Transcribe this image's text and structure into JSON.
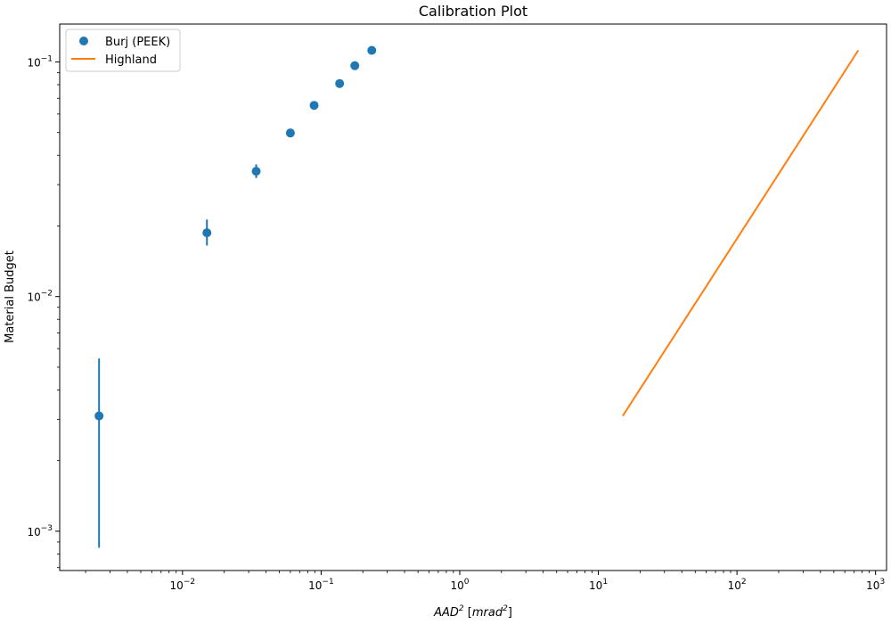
{
  "chart_data": {
    "type": "scatter",
    "title": "Calibration Plot",
    "xlabel": {
      "base": "AAD",
      "base_sup": "2",
      "unit_open": " [",
      "unit": "mrad",
      "unit_sup": "2",
      "unit_close": "]"
    },
    "ylabel": "Material Budget",
    "xscale": "log",
    "yscale": "log",
    "xlim": [
      0.0013,
      1200
    ],
    "ylim": [
      0.00068,
      0.145
    ],
    "x_ticks": [
      {
        "value": 0.01,
        "base": "10",
        "exp": "−2"
      },
      {
        "value": 0.1,
        "base": "10",
        "exp": "−1"
      },
      {
        "value": 1,
        "base": "10",
        "exp": "0"
      },
      {
        "value": 10,
        "base": "10",
        "exp": "1"
      },
      {
        "value": 100,
        "base": "10",
        "exp": "2"
      },
      {
        "value": 1000,
        "base": "10",
        "exp": "3"
      }
    ],
    "y_ticks": [
      {
        "value": 0.001,
        "base": "10",
        "exp": "−3"
      },
      {
        "value": 0.01,
        "base": "10",
        "exp": "−2"
      },
      {
        "value": 0.1,
        "base": "10",
        "exp": "−1"
      }
    ],
    "grid": false,
    "legend_position": "top-left",
    "series": [
      {
        "name": "Burj (PEEK)",
        "kind": "scatter_errorbar",
        "color": "#1f77b4",
        "x": [
          0.0025,
          0.015,
          0.034,
          0.06,
          0.089,
          0.136,
          0.175,
          0.232
        ],
        "y": [
          0.0031,
          0.0187,
          0.0342,
          0.0498,
          0.0653,
          0.0809,
          0.0964,
          0.112
        ],
        "yerr_low": [
          0.00225,
          0.0022,
          0.0022,
          0.0015,
          0.0008,
          0.0008,
          0.0008,
          0.0008
        ],
        "yerr_high": [
          0.00235,
          0.0026,
          0.0024,
          0.0015,
          0.0008,
          0.0008,
          0.0008,
          0.0008
        ]
      },
      {
        "name": "Highland",
        "kind": "line",
        "color": "#ff7f0e",
        "x": [
          15,
          750
        ],
        "y": [
          0.0031,
          0.112
        ]
      }
    ]
  }
}
